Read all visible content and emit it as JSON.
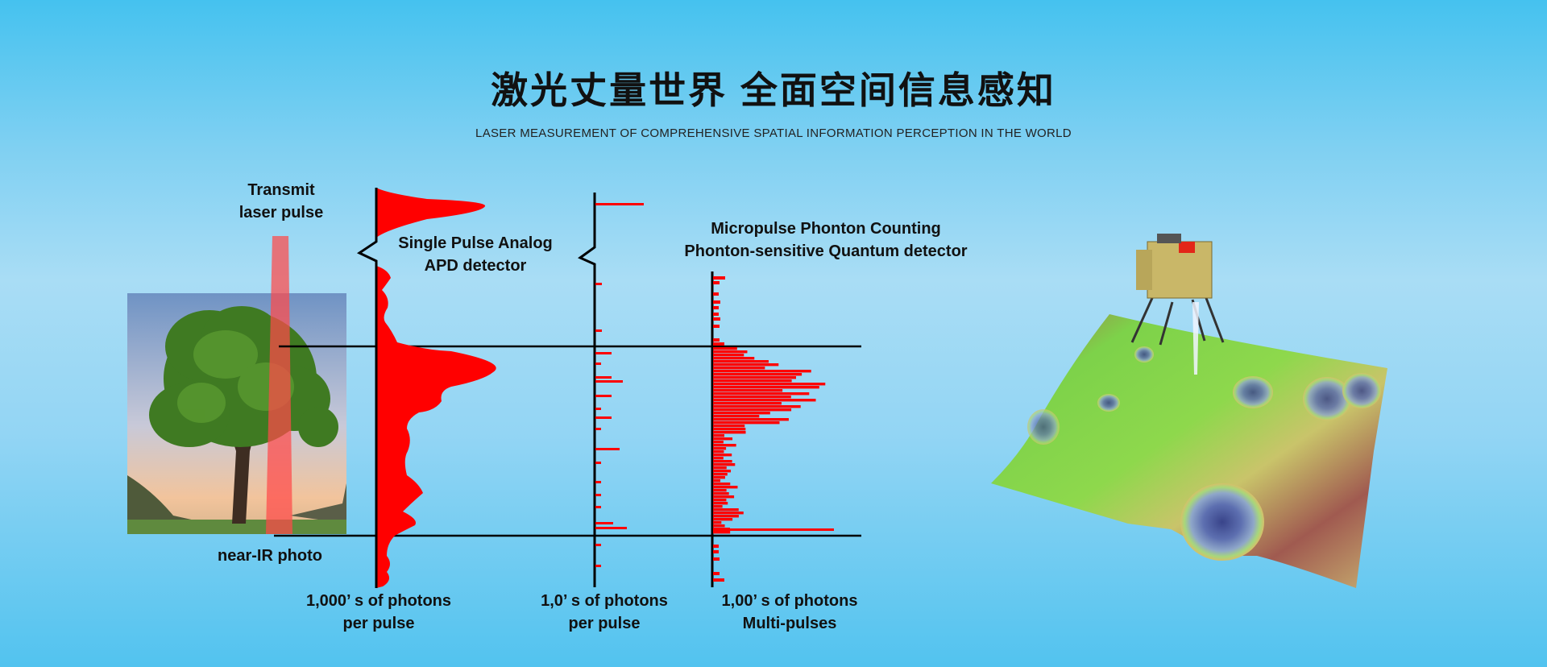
{
  "header": {
    "title": "激光丈量世界 全面空间信息感知",
    "subtitle": "LASER MEASUREMENT OF COMPREHENSIVE SPATIAL INFORMATION PERCEPTION IN THE WORLD"
  },
  "diagram": {
    "transmit_label": [
      "Transmit",
      "laser pulse"
    ],
    "photo_label": "near-IR photo",
    "analog_label": [
      "Single Pulse Analog",
      "APD detector"
    ],
    "photon_label": [
      "Micropulse Phonton Counting",
      "Phonton-sensitive Quantum detector"
    ],
    "axis_labels": [
      [
        "1,000’ s of photons",
        "per pulse"
      ],
      [
        "1,0’ s of photons",
        "per pulse"
      ],
      [
        "1,00’ s of photons",
        "Multi-pulses"
      ]
    ],
    "colors": {
      "signal": "#ff0000",
      "beam": "#ff5a5a",
      "axis": "#000000"
    }
  },
  "illustration": {
    "icons": [
      "tree-photo",
      "lunar-lander",
      "terrain-elevation-map"
    ]
  }
}
